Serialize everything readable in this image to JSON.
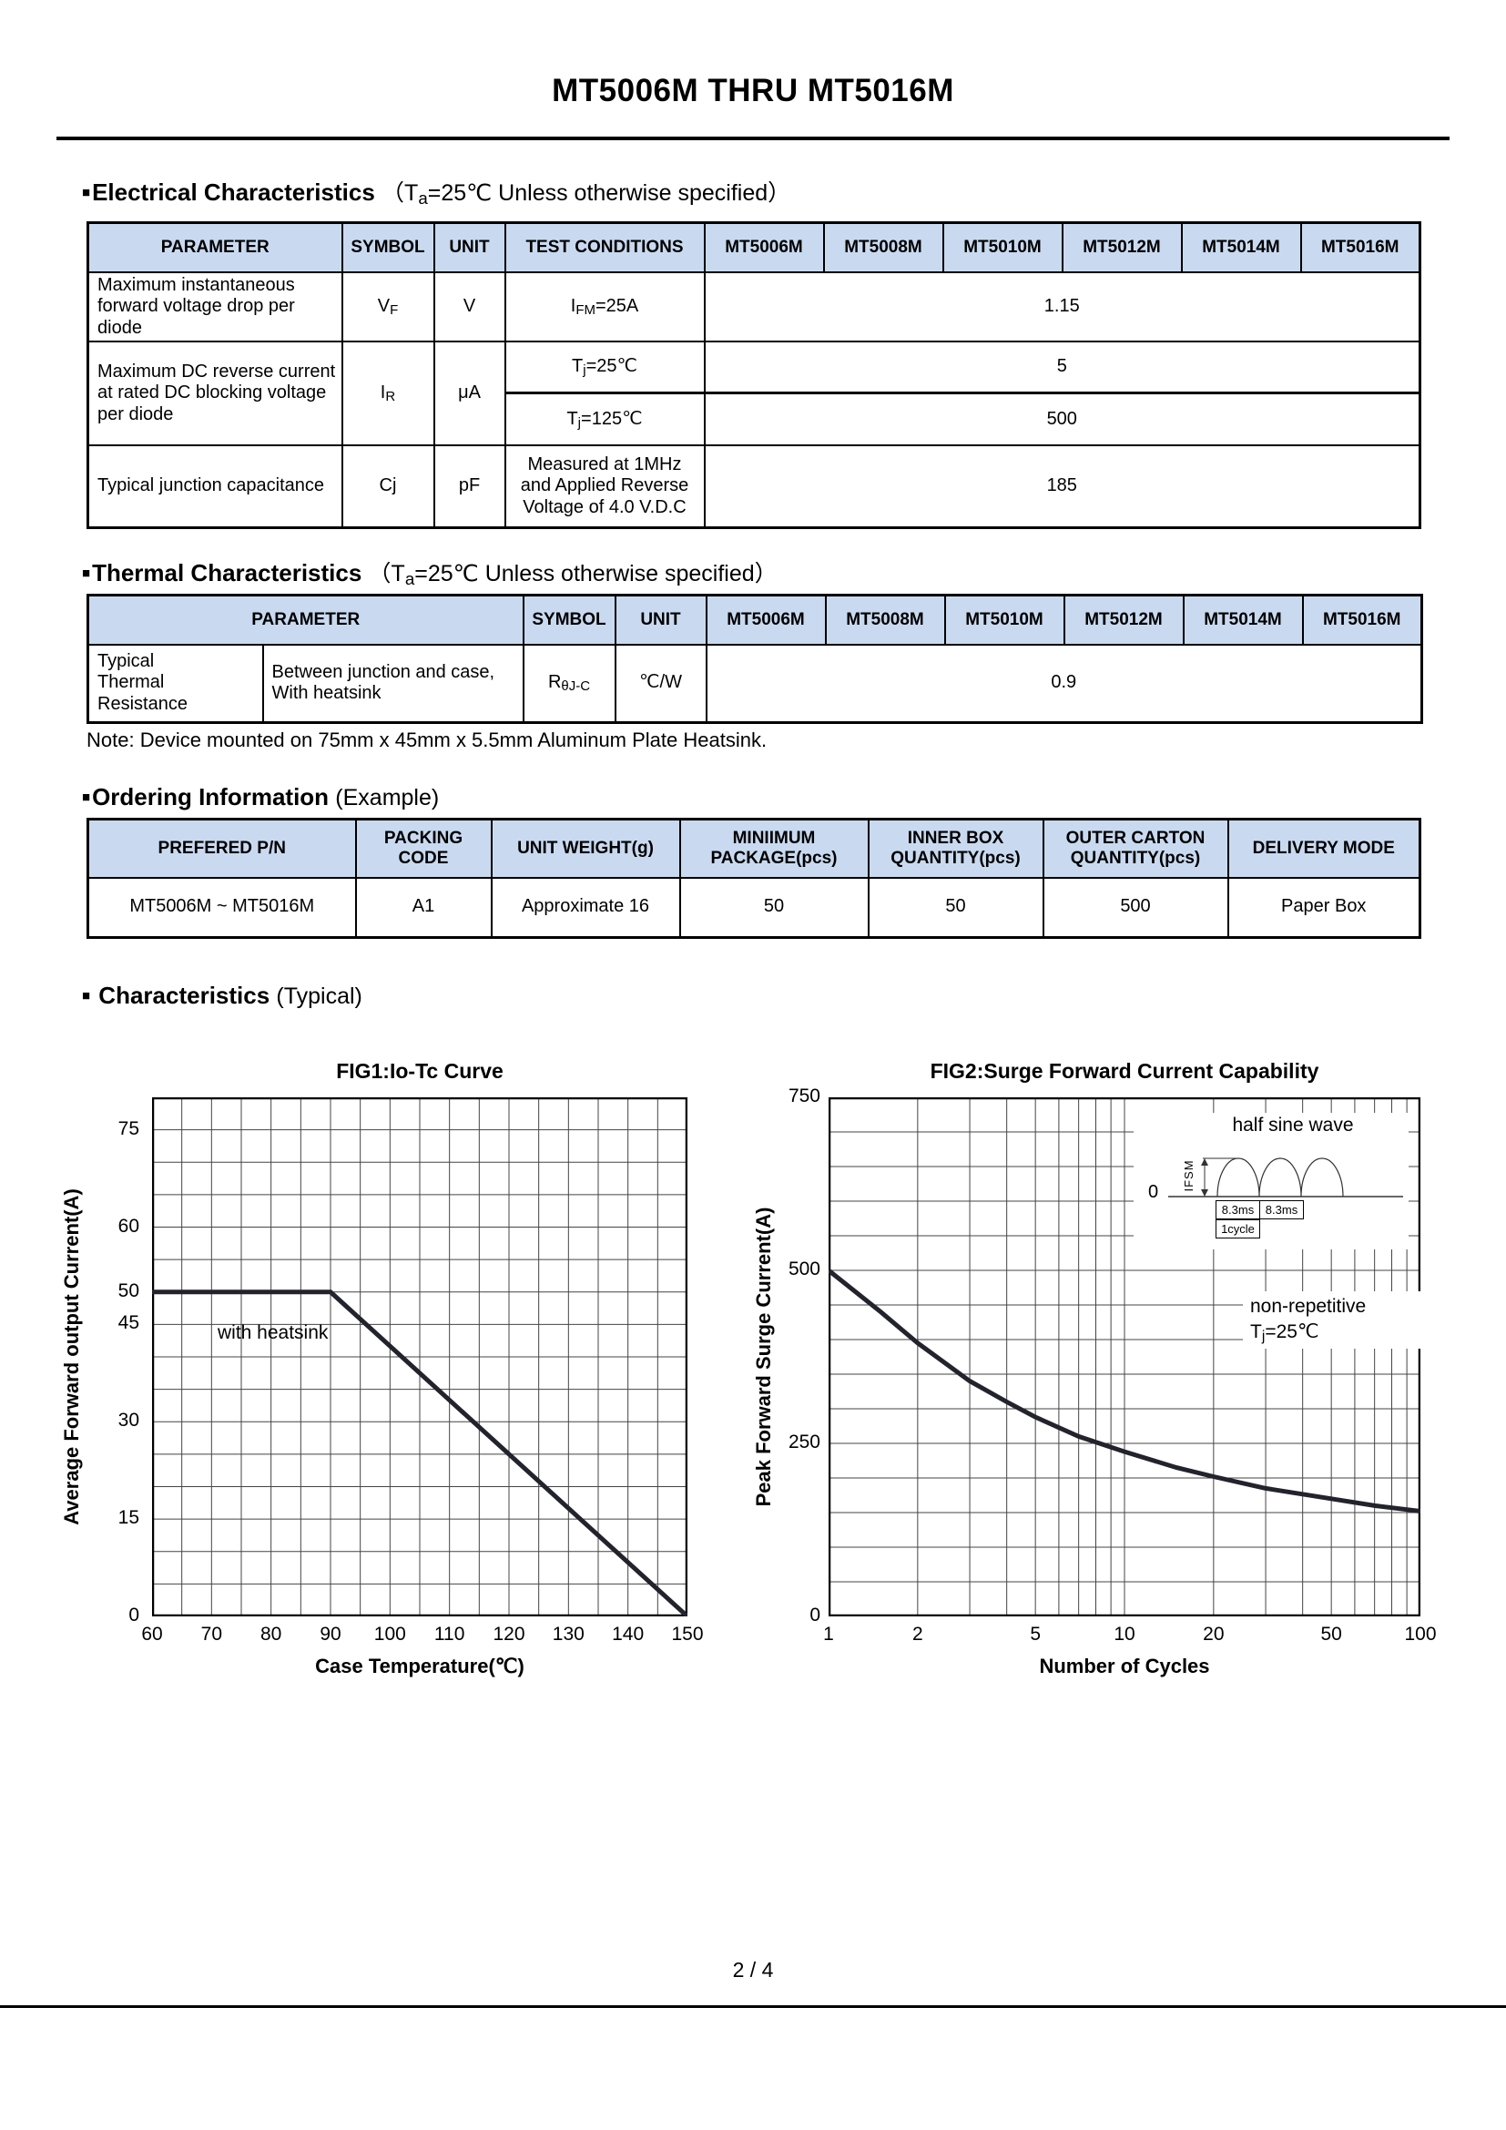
{
  "page": {
    "title": "MT5006M THRU MT5016M",
    "footer": "2 / 4"
  },
  "glyphs": {
    "bullet": "■"
  },
  "models": [
    "MT5006M",
    "MT5008M",
    "MT5010M",
    "MT5012M",
    "MT5014M",
    "MT5016M"
  ],
  "electrical": {
    "heading": "Electrical Characteristics",
    "cond": {
      "pre": "（T",
      "sub": "a",
      "post": "=25℃ Unless otherwise specified）"
    },
    "headers": {
      "parameter": "PARAMETER",
      "symbol": "SYMBOL",
      "unit": "UNIT",
      "test_conditions": "TEST CONDITIONS"
    },
    "rows": {
      "vf": {
        "param": "Maximum instantaneous forward voltage drop per diode",
        "sym_base": "V",
        "sym_sub": "F",
        "unit": "V",
        "cond_base": "I",
        "cond_sub": "FM",
        "cond_post": "=25A",
        "value": "1.15"
      },
      "ir": {
        "param": "Maximum DC reverse current at rated DC blocking voltage per diode",
        "sym_base": "I",
        "sym_sub": "R",
        "unit": "μA",
        "cond1_base": "T",
        "cond1_sub": "j",
        "cond1_post": "=25℃",
        "value1": "5",
        "cond2_base": "T",
        "cond2_sub": "j",
        "cond2_post": "=125℃",
        "value2": "500"
      },
      "cj": {
        "param": "Typical junction capacitance",
        "sym": "Cj",
        "unit": "pF",
        "cond": "Measured at 1MHz and Applied Reverse Voltage of 4.0 V.D.C",
        "value": "185"
      }
    }
  },
  "thermal": {
    "heading": "Thermal Characteristics",
    "cond": {
      "pre": "（T",
      "sub": "a",
      "post": "=25℃ Unless otherwise specified）"
    },
    "headers": {
      "parameter": "PARAMETER",
      "symbol": "SYMBOL",
      "unit": "UNIT"
    },
    "row": {
      "param1": "Typical Thermal Resistance",
      "param2": "Between junction and case, With heatsink",
      "sym_base": "R",
      "sym_sub": "θJ-C",
      "unit": "℃/W",
      "value": "0.9"
    },
    "note": "Note: Device mounted on 75mm x 45mm x 5.5mm Aluminum Plate Heatsink."
  },
  "ordering": {
    "heading": "Ordering Information",
    "suffix": "(Example)",
    "headers": [
      "PREFERED P/N",
      "PACKING CODE",
      "UNIT WEIGHT(g)",
      "MINIIMUM PACKAGE(pcs)",
      "INNER BOX QUANTITY(pcs)",
      "OUTER CARTON QUANTITY(pcs)",
      "DELIVERY MODE"
    ],
    "row": [
      "MT5006M ~ MT5016M",
      "A1",
      "Approximate 16",
      "50",
      "50",
      "500",
      "Paper Box"
    ]
  },
  "characteristics": {
    "heading": "Characteristics",
    "suffix": "(Typical)"
  },
  "chart_data": [
    {
      "type": "line",
      "title": "FIG1:Io-Tc Curve",
      "xlabel": "Case Temperature(℃)",
      "ylabel": "Average Forward output Current(A)",
      "xlim": [
        60,
        150
      ],
      "ylim": [
        0,
        80
      ],
      "x_grid_step": 5,
      "y_grid_step": 5,
      "grid": true,
      "legend_position": "none",
      "x_ticks": [
        {
          "v": 60,
          "label": "60"
        },
        {
          "v": 70,
          "label": "70"
        },
        {
          "v": 80,
          "label": "80"
        },
        {
          "v": 90,
          "label": "90"
        },
        {
          "v": 100,
          "label": "100"
        },
        {
          "v": 110,
          "label": "110"
        },
        {
          "v": 120,
          "label": "120"
        },
        {
          "v": 130,
          "label": "130"
        },
        {
          "v": 140,
          "label": "140"
        },
        {
          "v": 150,
          "label": "150"
        }
      ],
      "y_ticks": [
        {
          "v": 0,
          "label": "0"
        },
        {
          "v": 15,
          "label": "15"
        },
        {
          "v": 30,
          "label": "30"
        },
        {
          "v": 45,
          "label": "45"
        },
        {
          "v": 50,
          "label": "50"
        },
        {
          "v": 60,
          "label": "60"
        },
        {
          "v": 75,
          "label": "75"
        }
      ],
      "series": [
        {
          "name": "with heatsink",
          "points": [
            [
              60,
              50
            ],
            [
              90,
              50
            ],
            [
              150,
              0
            ]
          ]
        }
      ],
      "annotation": "with heatsink"
    },
    {
      "type": "line",
      "x_scale": "log",
      "title": "FIG2:Surge Forward Current Capability",
      "xlabel": "Number of Cycles",
      "ylabel": "Peak Forward Surge Current(A)",
      "xlim": [
        1,
        100
      ],
      "ylim": [
        0,
        750
      ],
      "y_grid_step": 50,
      "grid": true,
      "legend_position": "none",
      "x_ticks": [
        {
          "v": 1,
          "label": "1"
        },
        {
          "v": 2,
          "label": "2"
        },
        {
          "v": 5,
          "label": "5"
        },
        {
          "v": 10,
          "label": "10"
        },
        {
          "v": 20,
          "label": "20"
        },
        {
          "v": 50,
          "label": "50"
        },
        {
          "v": 100,
          "label": "100"
        }
      ],
      "y_ticks": [
        {
          "v": 0,
          "label": "0"
        },
        {
          "v": 250,
          "label": "250"
        },
        {
          "v": 500,
          "label": "500"
        },
        {
          "v": 750,
          "label": "750"
        }
      ],
      "series": [
        {
          "name": "non-repetitive surge",
          "points": [
            [
              1,
              500
            ],
            [
              1.5,
              440
            ],
            [
              2,
              395
            ],
            [
              3,
              340
            ],
            [
              4,
              310
            ],
            [
              5,
              288
            ],
            [
              7,
              260
            ],
            [
              10,
              238
            ],
            [
              15,
              215
            ],
            [
              20,
              202
            ],
            [
              30,
              185
            ],
            [
              50,
              170
            ],
            [
              70,
              160
            ],
            [
              100,
              152
            ]
          ]
        }
      ],
      "inset": {
        "title": "half sine wave",
        "ifsm_label": "IFSM",
        "pulse_width_1": "8.3ms",
        "pulse_width_2": "8.3ms",
        "cycle_label": "1cycle",
        "zero_label": "0"
      },
      "note": {
        "line1": "non-repetitive",
        "line2_base": "T",
        "line2_sub": "j",
        "line2_post": "=25℃"
      }
    }
  ],
  "colors": {
    "header_bg": "#c9daf0",
    "grid": "#444444",
    "curve": "#23232e"
  }
}
